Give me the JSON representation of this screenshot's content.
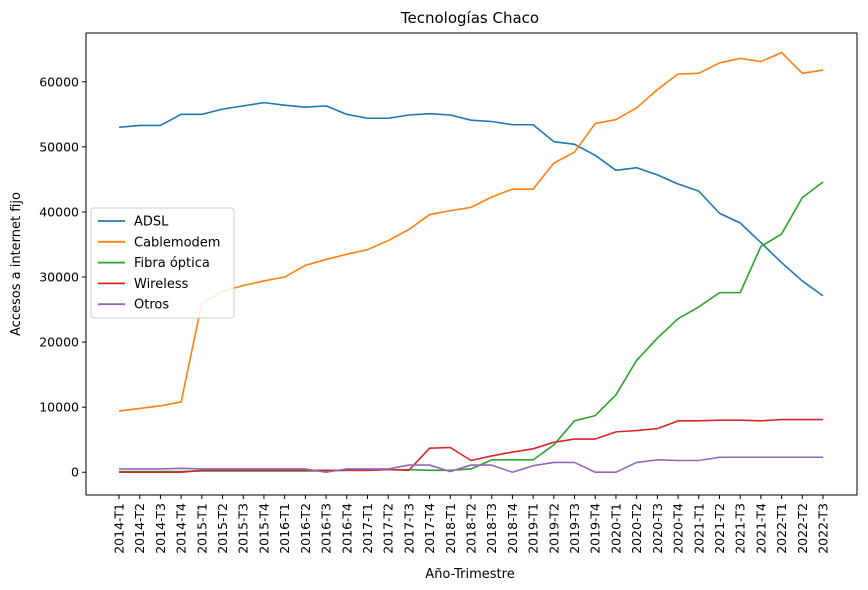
{
  "chart_data": {
    "type": "line",
    "title": "Tecnologías Chaco",
    "xlabel": "Año-Trimestre",
    "ylabel": "Accesos a internet fijo",
    "ylim": [
      -3500,
      67500
    ],
    "yticks": [
      0,
      10000,
      20000,
      30000,
      40000,
      50000,
      60000
    ],
    "grid": false,
    "legend_position": "center-left",
    "categories": [
      "2014-T1",
      "2014-T2",
      "2014-T3",
      "2014-T4",
      "2015-T1",
      "2015-T2",
      "2015-T3",
      "2015-T4",
      "2016-T1",
      "2016-T2",
      "2016-T3",
      "2016-T4",
      "2017-T1",
      "2017-T2",
      "2017-T3",
      "2017-T4",
      "2018-T1",
      "2018-T2",
      "2018-T3",
      "2018-T4",
      "2019-T1",
      "2019-T2",
      "2019-T3",
      "2019-T4",
      "2020-T1",
      "2020-T2",
      "2020-T3",
      "2020-T4",
      "2021-T1",
      "2021-T2",
      "2021-T3",
      "2021-T4",
      "2022-T1",
      "2022-T2",
      "2022-T3"
    ],
    "series": [
      {
        "name": "ADSL",
        "color": "#1f77b4",
        "values": [
          53000,
          53300,
          53300,
          55000,
          55000,
          55800,
          56300,
          56800,
          56400,
          56100,
          56300,
          55000,
          54400,
          54400,
          54900,
          55100,
          54900,
          54100,
          53900,
          53400,
          53400,
          50800,
          50400,
          48700,
          46400,
          46800,
          45700,
          44300,
          43200,
          39800,
          38300,
          35300,
          32200,
          29400,
          27100
        ]
      },
      {
        "name": "Cablemodem",
        "color": "#ff7f0e",
        "values": [
          9400,
          9800,
          10200,
          10800,
          26000,
          27800,
          28700,
          29400,
          30000,
          31800,
          32700,
          33500,
          34200,
          35600,
          37300,
          39600,
          40200,
          40700,
          42300,
          43500,
          43500,
          47500,
          49200,
          53600,
          54200,
          56000,
          58800,
          61200,
          61300,
          62900,
          63600,
          63100,
          64500,
          61300,
          61800
        ]
      },
      {
        "name": "Fibra óptica",
        "color": "#2ca02c",
        "values": [
          100,
          100,
          100,
          100,
          200,
          200,
          200,
          200,
          200,
          200,
          200,
          300,
          300,
          400,
          400,
          300,
          300,
          500,
          1900,
          1900,
          1900,
          4200,
          7900,
          8700,
          11900,
          17200,
          20600,
          23600,
          25400,
          27600,
          27600,
          34700,
          36600,
          42200,
          44600
        ]
      },
      {
        "name": "Wireless",
        "color": "#d62728",
        "values": [
          0,
          0,
          0,
          0,
          300,
          300,
          300,
          300,
          300,
          300,
          300,
          300,
          300,
          400,
          300,
          3700,
          3800,
          1800,
          2500,
          3100,
          3600,
          4600,
          5100,
          5100,
          6200,
          6400,
          6700,
          7900,
          7900,
          8000,
          8000,
          7900,
          8100,
          8100,
          8100
        ]
      },
      {
        "name": "Otros",
        "color": "#9467bd",
        "values": [
          500,
          500,
          500,
          600,
          500,
          500,
          500,
          500,
          500,
          500,
          0,
          500,
          500,
          500,
          1100,
          1100,
          100,
          1100,
          1100,
          0,
          1000,
          1500,
          1500,
          0,
          0,
          1500,
          1900,
          1800,
          1800,
          2300,
          2300,
          2300,
          2300,
          2300,
          2300
        ]
      }
    ]
  }
}
